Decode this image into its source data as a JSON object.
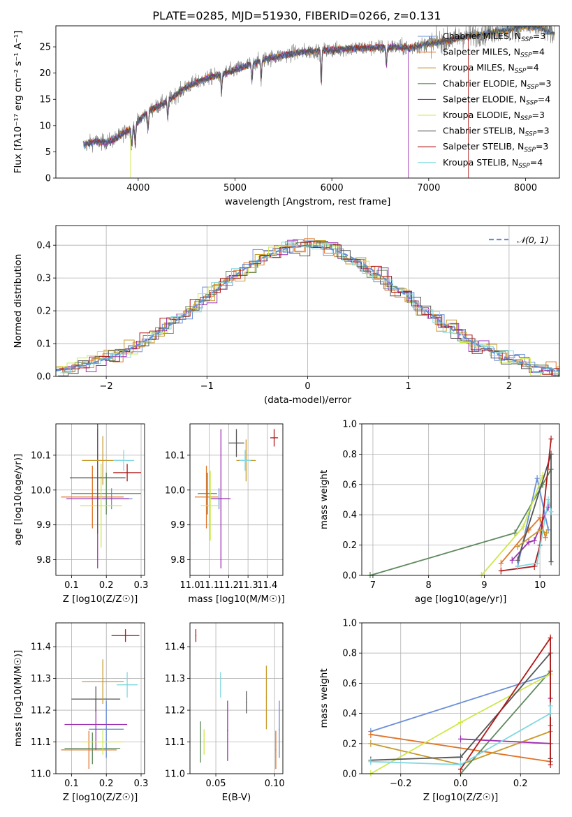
{
  "figure": {
    "title": "PLATE=0285, MJD=51930, FIBERID=0266, z=0.131"
  },
  "chart_data": [
    {
      "id": "spectrum",
      "type": "line",
      "xlabel": "wavelength [Angstrom, rest frame]",
      "ylabel": "Flux [fλ10⁻¹⁷ erg cm⁻² s⁻¹ A⁻¹]",
      "xlim": [
        3150,
        8350
      ],
      "ylim": [
        0,
        29
      ],
      "xticks": [
        4000,
        5000,
        6000,
        7000,
        8000
      ],
      "yticks": [
        0,
        5,
        10,
        15,
        20,
        25
      ],
      "grid": false,
      "legend_position": "right",
      "observed_range": [
        3430,
        8300
      ],
      "continuum": {
        "x": [
          3430,
          3550,
          3650,
          3750,
          3850,
          3950,
          4050,
          4150,
          4300,
          4400,
          4500,
          4600,
          4750,
          4900,
          5000,
          5150,
          5300,
          5450,
          5600,
          5800,
          6000,
          6200,
          6400,
          6600,
          6800,
          7000,
          7200,
          7400,
          7600,
          7800,
          8000,
          8150,
          8300
        ],
        "y": [
          6.2,
          7.0,
          6.8,
          7.3,
          8.6,
          9.6,
          11.8,
          13.2,
          14.6,
          16.0,
          17.4,
          18.2,
          19.2,
          20.0,
          20.6,
          21.6,
          22.6,
          23.2,
          23.8,
          24.2,
          24.4,
          24.7,
          24.8,
          25.0,
          24.8,
          25.6,
          26.2,
          27.0,
          27.6,
          28.2,
          28.9,
          28.6,
          27.4
        ]
      },
      "series": [
        {
          "name": "Chabrier MILES, NSSP=3",
          "color": "#6a8fd8",
          "nssp": 3
        },
        {
          "name": "Salpeter MILES, NSSP=4",
          "color": "#e07428",
          "nssp": 4
        },
        {
          "name": "Kroupa MILES, NSSP=4",
          "color": "#c89a2c",
          "nssp": 4
        },
        {
          "name": "Chabrier ELODIE, NSSP=3",
          "color": "#5e8a5e",
          "nssp": 3
        },
        {
          "name": "Salpeter ELODIE, NSSP=4",
          "color": "#9b2fb0",
          "nssp": 4
        },
        {
          "name": "Kroupa ELODIE, NSSP=3",
          "color": "#cde84a",
          "nssp": 3
        },
        {
          "name": "Chabrier STELIB, NSSP=3",
          "color": "#555555",
          "nssp": 3
        },
        {
          "name": "Salpeter STELIB, NSSP=3",
          "color": "#b01818",
          "nssp": 3
        },
        {
          "name": "Kroupa STELIB, NSSP=4",
          "color": "#7fd8e0",
          "nssp": 4
        }
      ],
      "model_cutoffs": [
        {
          "series": 5,
          "x": 3920
        },
        {
          "series": 4,
          "x": 6790
        },
        {
          "series": 7,
          "x": 7410
        }
      ]
    },
    {
      "id": "residuals",
      "type": "step",
      "xlabel": "(data-model)/error",
      "ylabel": "Normed distribution",
      "xlim": [
        -2.5,
        2.5
      ],
      "ylim": [
        0,
        0.46
      ],
      "xticks": [
        -2,
        -1,
        0,
        1,
        2
      ],
      "yticks": [
        0.0,
        0.1,
        0.2,
        0.3,
        0.4
      ],
      "grid": true,
      "legend": "𝒩(0, 1)",
      "legend_position": "top-right",
      "bin_width": 0.1,
      "reference": {
        "mean": 0,
        "sigma": 1,
        "color": "#5f8fd4"
      }
    },
    {
      "id": "age_vs_z",
      "type": "errorbar",
      "xlabel": "Z [log10(Z/Z☉)]",
      "ylabel": "age [log10(age/yr)]",
      "xlim": [
        0.055,
        0.31
      ],
      "ylim": [
        9.755,
        10.19
      ],
      "xticks": [
        0.1,
        0.2,
        0.3
      ],
      "yticks": [
        9.8,
        9.9,
        10.0,
        10.1
      ],
      "grid": true,
      "points": [
        {
          "series": 0,
          "x": 0.215,
          "y": 9.975,
          "xerr": 0.06,
          "yerr": 0.03
        },
        {
          "series": 1,
          "x": 0.16,
          "y": 9.98,
          "xerr": 0.09,
          "yerr": 0.09
        },
        {
          "series": 3,
          "x": 0.2,
          "y": 9.99,
          "xerr": 0.1,
          "yerr": 0.06
        },
        {
          "series": 4,
          "x": 0.175,
          "y": 9.975,
          "xerr": 0.09,
          "yerr": 0.2
        },
        {
          "series": 5,
          "x": 0.185,
          "y": 9.955,
          "xerr": 0.06,
          "yerr": 0.12
        },
        {
          "series": 6,
          "x": 0.175,
          "y": 10.035,
          "xerr": 0.08,
          "yerr": 0.16
        },
        {
          "series": 7,
          "x": 0.26,
          "y": 10.05,
          "xerr": 0.04,
          "yerr": 0.025
        },
        {
          "series": 2,
          "x": 0.19,
          "y": 10.085,
          "xerr": 0.06,
          "yerr": 0.07
        },
        {
          "series": 8,
          "x": 0.25,
          "y": 10.085,
          "xerr": 0.03,
          "yerr": 0.03
        }
      ]
    },
    {
      "id": "age_vs_mass",
      "type": "errorbar",
      "xlabel": "mass [log10(M/M☉)]",
      "ylabel": "",
      "xlim": [
        11.0,
        11.48
      ],
      "ylim": [
        9.755,
        10.19
      ],
      "xticks": [
        11.0,
        11.1,
        11.2,
        11.3,
        11.4
      ],
      "yticks": [
        9.8,
        9.9,
        10.0,
        10.1
      ],
      "grid": true,
      "points": [
        {
          "series": 0,
          "x": 11.15,
          "y": 9.975,
          "xerr": 0.05,
          "yerr": 0.03
        },
        {
          "series": 1,
          "x": 11.085,
          "y": 9.98,
          "xerr": 0.06,
          "yerr": 0.09
        },
        {
          "series": 3,
          "x": 11.09,
          "y": 9.99,
          "xerr": 0.05,
          "yerr": 0.06
        },
        {
          "series": 4,
          "x": 11.16,
          "y": 9.975,
          "xerr": 0.05,
          "yerr": 0.2
        },
        {
          "series": 5,
          "x": 11.105,
          "y": 9.955,
          "xerr": 0.05,
          "yerr": 0.1
        },
        {
          "series": 6,
          "x": 11.24,
          "y": 10.135,
          "xerr": 0.04,
          "yerr": 0.04
        },
        {
          "series": 7,
          "x": 11.435,
          "y": 10.15,
          "xerr": 0.02,
          "yerr": 0.025
        },
        {
          "series": 2,
          "x": 11.29,
          "y": 10.085,
          "xerr": 0.05,
          "yerr": 0.06
        },
        {
          "series": 8,
          "x": 11.285,
          "y": 10.085,
          "xerr": 0.03,
          "yerr": 0.03
        }
      ]
    },
    {
      "id": "weight_vs_age",
      "type": "line",
      "xlabel": "age [log10(age/yr)]",
      "ylabel": "mass weight",
      "xlim": [
        6.8,
        10.35
      ],
      "ylim": [
        0,
        1.0
      ],
      "xticks": [
        7,
        8,
        9,
        10
      ],
      "yticks": [
        0.0,
        0.2,
        0.4,
        0.6,
        0.8,
        1.0
      ],
      "grid": true,
      "series": [
        {
          "series": 0,
          "x": [
            9.6,
            9.95,
            10.15
          ],
          "y": [
            0.06,
            0.64,
            0.3
          ]
        },
        {
          "series": 1,
          "x": [
            9.3,
            9.8,
            10.0,
            10.1
          ],
          "y": [
            0.08,
            0.3,
            0.38,
            0.25
          ]
        },
        {
          "series": 3,
          "x": [
            6.95,
            9.55,
            10.05,
            10.2
          ],
          "y": [
            0.0,
            0.28,
            0.6,
            0.7
          ]
        },
        {
          "series": 4,
          "x": [
            9.5,
            9.8,
            9.9,
            10.15
          ],
          "y": [
            0.1,
            0.22,
            0.23,
            0.45
          ]
        },
        {
          "series": 5,
          "x": [
            8.95,
            9.7,
            10.05
          ],
          "y": [
            0.0,
            0.32,
            0.66
          ]
        },
        {
          "series": 6,
          "x": [
            9.6,
            10.2,
            10.2
          ],
          "y": [
            0.1,
            0.8,
            0.09
          ]
        },
        {
          "series": 7,
          "x": [
            9.3,
            9.9,
            10.0,
            10.2
          ],
          "y": [
            0.03,
            0.06,
            0.2,
            0.9
          ]
        },
        {
          "series": 2,
          "x": [
            9.6,
            10.0,
            10.12
          ],
          "y": [
            0.19,
            0.3,
            0.28
          ]
        },
        {
          "series": 8,
          "x": [
            9.6,
            9.95,
            10.15,
            10.2
          ],
          "y": [
            0.06,
            0.08,
            0.5,
            0.42
          ]
        }
      ]
    },
    {
      "id": "mass_vs_z",
      "type": "errorbar",
      "xlabel": "Z [log10(Z/Z☉)]",
      "ylabel": "mass [log10(M/M☉)]",
      "xlim": [
        0.055,
        0.31
      ],
      "ylim": [
        11.0,
        11.475
      ],
      "xticks": [
        0.1,
        0.2,
        0.3
      ],
      "yticks": [
        11.0,
        11.1,
        11.2,
        11.3,
        11.4
      ],
      "grid": true,
      "points": [
        {
          "series": 0,
          "x": 0.2,
          "y": 11.14,
          "xerr": 0.05,
          "yerr": 0.09
        },
        {
          "series": 1,
          "x": 0.15,
          "y": 11.075,
          "xerr": 0.08,
          "yerr": 0.06
        },
        {
          "series": 3,
          "x": 0.16,
          "y": 11.08,
          "xerr": 0.08,
          "yerr": 0.05
        },
        {
          "series": 4,
          "x": 0.17,
          "y": 11.155,
          "xerr": 0.09,
          "yerr": 0.08
        },
        {
          "series": 5,
          "x": 0.19,
          "y": 11.1,
          "xerr": 0.06,
          "yerr": 0.04
        },
        {
          "series": 6,
          "x": 0.17,
          "y": 11.235,
          "xerr": 0.07,
          "yerr": 0.04
        },
        {
          "series": 7,
          "x": 0.255,
          "y": 11.435,
          "xerr": 0.04,
          "yerr": 0.02
        },
        {
          "series": 2,
          "x": 0.19,
          "y": 11.29,
          "xerr": 0.06,
          "yerr": 0.07
        },
        {
          "series": 8,
          "x": 0.26,
          "y": 11.28,
          "xerr": 0.03,
          "yerr": 0.04
        }
      ]
    },
    {
      "id": "mass_vs_ebv",
      "type": "errorbar",
      "xlabel": "E(B-V)",
      "ylabel": "",
      "xlim": [
        0.028,
        0.107
      ],
      "ylim": [
        11.0,
        11.475
      ],
      "xticks": [
        0.05,
        0.1
      ],
      "yticks": [
        11.0,
        11.1,
        11.2,
        11.3,
        11.4
      ],
      "grid": true,
      "points": [
        {
          "series": 0,
          "x": 0.104,
          "y": 11.14,
          "xerr": 0,
          "yerr": 0.09
        },
        {
          "series": 1,
          "x": 0.101,
          "y": 11.075,
          "xerr": 0,
          "yerr": 0.06
        },
        {
          "series": 3,
          "x": 0.037,
          "y": 11.1,
          "xerr": 0,
          "yerr": 0.065
        },
        {
          "series": 4,
          "x": 0.06,
          "y": 11.135,
          "xerr": 0,
          "yerr": 0.095
        },
        {
          "series": 5,
          "x": 0.04,
          "y": 11.1,
          "xerr": 0,
          "yerr": 0.04
        },
        {
          "series": 6,
          "x": 0.076,
          "y": 11.225,
          "xerr": 0,
          "yerr": 0.035
        },
        {
          "series": 7,
          "x": 0.033,
          "y": 11.435,
          "xerr": 0,
          "yerr": 0.02
        },
        {
          "series": 2,
          "x": 0.093,
          "y": 11.24,
          "xerr": 0,
          "yerr": 0.1
        },
        {
          "series": 8,
          "x": 0.054,
          "y": 11.28,
          "xerr": 0,
          "yerr": 0.04
        }
      ]
    },
    {
      "id": "weight_vs_z",
      "type": "line",
      "xlabel": "Z [log10(Z/Z☉)]",
      "ylabel": "mass weight",
      "xlim": [
        -0.33,
        0.33
      ],
      "ylim": [
        0,
        1.0
      ],
      "xticks": [
        -0.2,
        0.0,
        0.2
      ],
      "yticks": [
        0.0,
        0.2,
        0.4,
        0.6,
        0.8,
        1.0
      ],
      "grid": true,
      "series": [
        {
          "series": 0,
          "x": [
            -0.3,
            0.3
          ],
          "y": [
            0.28,
            0.66
          ]
        },
        {
          "series": 1,
          "x": [
            -0.3,
            0.3
          ],
          "y": [
            0.26,
            0.08
          ]
        },
        {
          "series": 2,
          "x": [
            -0.3,
            0.0,
            0.3
          ],
          "y": [
            0.2,
            0.06,
            0.28
          ]
        },
        {
          "series": 3,
          "x": [
            0.0,
            0.3,
            0.3
          ],
          "y": [
            0.0,
            0.68,
            0.32
          ]
        },
        {
          "series": 4,
          "x": [
            0.0,
            0.3,
            0.3
          ],
          "y": [
            0.23,
            0.2,
            0.5
          ]
        },
        {
          "series": 5,
          "x": [
            -0.3,
            0.0,
            0.3
          ],
          "y": [
            0.0,
            0.34,
            0.66
          ]
        },
        {
          "series": 6,
          "x": [
            -0.3,
            0.0,
            0.3,
            0.3
          ],
          "y": [
            0.09,
            0.11,
            0.8,
            0.1
          ]
        },
        {
          "series": 7,
          "x": [
            0.0,
            0.3,
            0.3
          ],
          "y": [
            0.03,
            0.9,
            0.06
          ]
        },
        {
          "series": 8,
          "x": [
            -0.3,
            0.0,
            0.3,
            0.3
          ],
          "y": [
            0.08,
            0.06,
            0.4,
            0.45
          ]
        }
      ]
    }
  ]
}
